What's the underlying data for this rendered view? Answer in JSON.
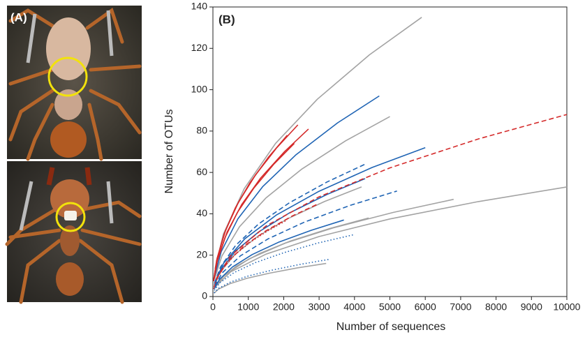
{
  "photo_panel": {
    "label": "(A)"
  },
  "chart_data": {
    "type": "line",
    "title": "(B)",
    "x_label": "Number of sequences",
    "y_label": "Number of OTUs",
    "xlim": [
      0,
      10000
    ],
    "ylim": [
      0,
      140
    ],
    "xticks": [
      0,
      1000,
      2000,
      3000,
      4000,
      5000,
      6000,
      7000,
      8000,
      9000,
      10000
    ],
    "yticks": [
      0,
      20,
      40,
      60,
      80,
      100,
      120,
      140
    ],
    "series": [
      {
        "color": "#a3a3a3",
        "style": "solid",
        "x": [
          59,
          295,
          885,
          1770,
          2950,
          4425,
          5900
        ],
        "values": [
          13.5,
          30.2,
          52.2,
          74.0,
          95.4,
          116.9,
          135
        ]
      },
      {
        "color": "#a3a3a3",
        "style": "solid",
        "x": [
          50,
          250,
          750,
          1500,
          2500,
          3750,
          5000
        ],
        "values": [
          8.7,
          19.5,
          33.7,
          47.7,
          61.5,
          75.3,
          87
        ]
      },
      {
        "color": "#a3a3a3",
        "style": "solid",
        "x": [
          42,
          210,
          630,
          1260,
          2100,
          3150,
          4200
        ],
        "values": [
          5.3,
          11.9,
          20.5,
          29.0,
          37.5,
          45.9,
          53
        ]
      },
      {
        "color": "#a3a3a3",
        "style": "solid",
        "x": [
          100,
          500,
          1500,
          3000,
          5000,
          7500,
          10000
        ],
        "values": [
          5.3,
          11.9,
          20.5,
          29.0,
          37.5,
          45.9,
          53
        ]
      },
      {
        "color": "#a3a3a3",
        "style": "solid",
        "x": [
          68,
          340,
          1020,
          2040,
          3400,
          5100,
          6800
        ],
        "values": [
          4.7,
          10.5,
          18.2,
          25.8,
          33.2,
          40.7,
          47
        ]
      },
      {
        "color": "#a3a3a3",
        "style": "solid",
        "x": [
          44,
          220,
          660,
          1320,
          2200,
          3300,
          4400
        ],
        "values": [
          3.8,
          8.5,
          14.7,
          20.8,
          26.9,
          32.9,
          38
        ]
      },
      {
        "color": "#a3a3a3",
        "style": "solid",
        "x": [
          32,
          160,
          480,
          960,
          1600,
          2400,
          3200
        ],
        "values": [
          1.6,
          3.6,
          6.2,
          8.8,
          11.3,
          13.9,
          16
        ]
      },
      {
        "color": "#1f64b4",
        "style": "solid",
        "x": [
          47,
          235,
          705,
          1410,
          2350,
          3525,
          4700
        ],
        "values": [
          9.7,
          21.7,
          37.5,
          53.2,
          68.6,
          84.0,
          97
        ]
      },
      {
        "color": "#1f64b4",
        "style": "solid",
        "x": [
          60,
          300,
          900,
          1800,
          3000,
          4500,
          6000
        ],
        "values": [
          7.2,
          16.1,
          27.9,
          39.5,
          50.9,
          62.4,
          72
        ]
      },
      {
        "color": "#1f64b4",
        "style": "solid",
        "x": [
          43,
          215,
          645,
          1290,
          2150,
          3225,
          4300
        ],
        "values": [
          5.7,
          12.8,
          22.1,
          31.2,
          40.3,
          49.4,
          57
        ]
      },
      {
        "color": "#1f64b4",
        "style": "solid",
        "x": [
          37,
          185,
          555,
          1110,
          1850,
          2775,
          3700
        ],
        "values": [
          3.7,
          8.3,
          14.3,
          20.3,
          26.2,
          32.0,
          37
        ]
      },
      {
        "color": "#d42a2a",
        "style": "solid",
        "x": [
          24,
          120,
          360,
          720,
          1200,
          1800,
          2400
        ],
        "values": [
          8.3,
          18.6,
          32.1,
          45.5,
          58.7,
          71.9,
          83
        ]
      },
      {
        "color": "#d42a2a",
        "style": "solid",
        "x": [
          27,
          135,
          405,
          810,
          1350,
          2025,
          2700
        ],
        "values": [
          8.1,
          18.1,
          31.3,
          44.4,
          57.3,
          70.1,
          81
        ]
      },
      {
        "color": "#d42a2a",
        "style": "solid",
        "x": [
          21,
          105,
          315,
          630,
          1050,
          1575,
          2100
        ],
        "values": [
          7.8,
          17.5,
          30.2,
          42.7,
          55.1,
          67.5,
          78
        ]
      },
      {
        "color": "#d42a2a",
        "style": "solid",
        "x": [
          23,
          115,
          345,
          690,
          1150,
          1725,
          2300
        ],
        "values": [
          7.4,
          16.6,
          28.6,
          40.6,
          52.3,
          64.1,
          74
        ]
      },
      {
        "color": "#d42a2a",
        "style": "dashed",
        "x": [
          100,
          500,
          1500,
          3000,
          5000,
          7500,
          10000
        ],
        "values": [
          8.8,
          19.7,
          34.1,
          48.2,
          62.2,
          76.2,
          88
        ]
      },
      {
        "color": "#d42a2a",
        "style": "dashed",
        "x": [
          30,
          150,
          450,
          900,
          1500,
          2250,
          3000
        ],
        "values": [
          4.5,
          10.1,
          17.4,
          24.7,
          31.8,
          39.0,
          45
        ]
      },
      {
        "color": "#1f64b4",
        "style": "dashed",
        "x": [
          43,
          215,
          645,
          1290,
          2150,
          3225,
          4300
        ],
        "values": [
          6.4,
          14.3,
          24.8,
          35.1,
          45.2,
          55.4,
          64
        ]
      },
      {
        "color": "#1f64b4",
        "style": "dashed",
        "x": [
          52,
          260,
          780,
          1560,
          2600,
          3900,
          5200
        ],
        "values": [
          5.1,
          11.4,
          19.7,
          27.9,
          36.1,
          44.2,
          51
        ]
      },
      {
        "color": "#1f64b4",
        "style": "dotted",
        "x": [
          40,
          200,
          600,
          1200,
          2000,
          3000,
          4000
        ],
        "values": [
          3,
          6.7,
          11.6,
          16.4,
          21.2,
          26,
          30
        ]
      },
      {
        "color": "#1f64b4",
        "style": "dotted",
        "x": [
          33,
          165,
          495,
          990,
          1650,
          2475,
          3300
        ],
        "values": [
          1.8,
          4.0,
          7.0,
          9.9,
          12.7,
          15.6,
          18
        ]
      },
      {
        "color": "#d42a2a",
        "style": "dotted",
        "x": [
          21,
          105,
          315,
          630,
          1050,
          1575,
          2100
        ],
        "values": [
          3.7,
          8.3,
          14.3,
          20.3,
          26.2,
          32.0,
          37
        ]
      }
    ]
  }
}
